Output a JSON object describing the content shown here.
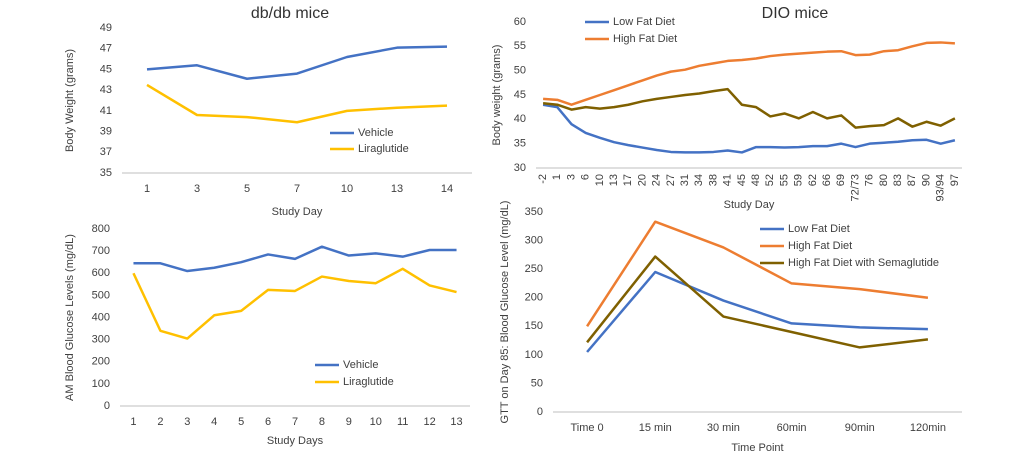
{
  "chart_data": [
    {
      "type": "line",
      "title": "db/db mice",
      "x_label": "Study Day",
      "y_label": "Body Weight (grams)",
      "categories": [
        "1",
        "3",
        "5",
        "7",
        "10",
        "13",
        "14"
      ],
      "series": [
        {
          "name": "Vehicle",
          "color": "#4472c4",
          "values": [
            45,
            45.4,
            44.1,
            44.6,
            46.2,
            47.1,
            47.2
          ]
        },
        {
          "name": "Liraglutide",
          "color": "#ffc000",
          "values": [
            43.5,
            40.6,
            40.4,
            39.9,
            41,
            41.3,
            41.5
          ]
        }
      ],
      "ylim": [
        35,
        49
      ],
      "yticks": [
        35,
        37,
        39,
        41,
        43,
        45,
        47,
        49
      ]
    },
    {
      "type": "line",
      "title": "DIO mice",
      "x_label": "Study Day",
      "y_label": "Body weight (grams)",
      "categories": [
        "-2",
        "1",
        "3",
        "6",
        "10",
        "13",
        "17",
        "20",
        "24",
        "27",
        "31",
        "34",
        "38",
        "41",
        "45",
        "48",
        "52",
        "55",
        "59",
        "62",
        "66",
        "69",
        "72/73",
        "76",
        "80",
        "83",
        "87",
        "90",
        "93/94",
        "97"
      ],
      "series": [
        {
          "name": "Low Fat Diet",
          "color": "#4472c4",
          "values": [
            43,
            42.5,
            39,
            37.2,
            36.2,
            35.3,
            34.7,
            34.2,
            33.7,
            33.3,
            33.2,
            33.2,
            33.3,
            33.6,
            33.2,
            34.3,
            34.3,
            34.2,
            34.3,
            34.5,
            34.5,
            35,
            34.3,
            35,
            35.2,
            35.4,
            35.7,
            35.8,
            35,
            35.7
          ]
        },
        {
          "name": "High Fat Diet",
          "color": "#ed7d31",
          "values": [
            44.2,
            44,
            43,
            44,
            45,
            46,
            47,
            48,
            49,
            49.8,
            50.2,
            51,
            51.5,
            52,
            52.2,
            52.5,
            53,
            53.3,
            53.5,
            53.7,
            53.9,
            54,
            53.2,
            53.3,
            54,
            54.2,
            55,
            55.7,
            55.8,
            55.6
          ]
        },
        {
          "color": "#7f6000",
          "values": [
            43.3,
            43,
            42,
            42.5,
            42.2,
            42.5,
            43,
            43.7,
            44.2,
            44.6,
            45,
            45.3,
            45.8,
            46.2,
            43,
            42.5,
            40.6,
            41.2,
            40.2,
            41.5,
            40.2,
            40.8,
            38.3,
            38.6,
            38.8,
            40.2,
            38.5,
            39.5,
            38.7,
            40.2
          ]
        }
      ],
      "ylim": [
        30,
        60
      ],
      "yticks": [
        30,
        35,
        40,
        45,
        50,
        55,
        60
      ]
    },
    {
      "type": "line",
      "x_label": "Study Days",
      "y_label": "AM Blood Glucose Levels (mg/dL)",
      "categories": [
        "1",
        "2",
        "3",
        "4",
        "5",
        "6",
        "7",
        "8",
        "9",
        "10",
        "11",
        "12",
        "13"
      ],
      "series": [
        {
          "name": "Vehicle",
          "color": "#4472c4",
          "values": [
            645,
            645,
            610,
            625,
            650,
            685,
            665,
            720,
            680,
            690,
            675,
            705,
            705
          ]
        },
        {
          "name": "Liraglutide",
          "color": "#ffc000",
          "values": [
            600,
            340,
            305,
            410,
            430,
            525,
            520,
            585,
            565,
            555,
            620,
            545,
            515
          ]
        }
      ],
      "ylim": [
        0,
        800
      ],
      "yticks": [
        0,
        100,
        200,
        300,
        400,
        500,
        600,
        700,
        800
      ]
    },
    {
      "type": "line",
      "x_label": "Time Point",
      "y_label": "GTT on Day 85: Blood Glucose Level (mg/dL)",
      "categories": [
        "Time 0",
        "15 min",
        "30 min",
        "60min",
        "90min",
        "120min"
      ],
      "series": [
        {
          "name": "Low Fat Diet",
          "color": "#4472c4",
          "values": [
            105,
            245,
            195,
            155,
            148,
            145
          ]
        },
        {
          "name": "High Fat Diet",
          "color": "#ed7d31",
          "values": [
            150,
            333,
            288,
            225,
            215,
            200
          ]
        },
        {
          "name": "High Fat Diet with Semaglutide",
          "color": "#7f6000",
          "values": [
            122,
            272,
            167,
            140,
            113,
            127
          ]
        }
      ],
      "ylim": [
        0,
        350
      ],
      "yticks": [
        0,
        50,
        100,
        150,
        200,
        250,
        300,
        350
      ]
    }
  ]
}
